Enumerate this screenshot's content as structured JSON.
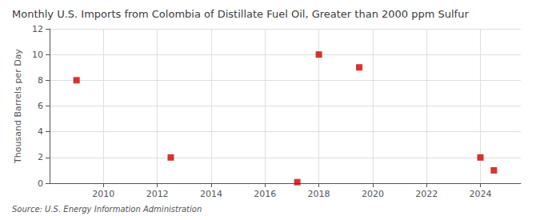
{
  "chart_data": {
    "type": "scatter",
    "title": "Monthly U.S. Imports from Colombia of Distillate Fuel Oil, Greater than 2000 ppm Sulfur",
    "ylabel": "Thousand Barrels per Day",
    "source": "Source: U.S. Energy Information Administration",
    "x": [
      2009.0,
      2012.5,
      2017.2,
      2018.0,
      2019.5,
      2024.0,
      2024.5
    ],
    "values": [
      8.0,
      2.0,
      0.08,
      10.0,
      9.0,
      2.0,
      1.0
    ],
    "color": "#cc0000",
    "marker": "square",
    "xlim": [
      2008.0,
      2025.5
    ],
    "xticks": [
      2010,
      2012,
      2014,
      2016,
      2018,
      2020,
      2022,
      2024
    ],
    "ylim": [
      0,
      12
    ],
    "yticks": [
      0,
      2,
      4,
      6,
      8,
      10,
      12
    ],
    "grid": true
  }
}
